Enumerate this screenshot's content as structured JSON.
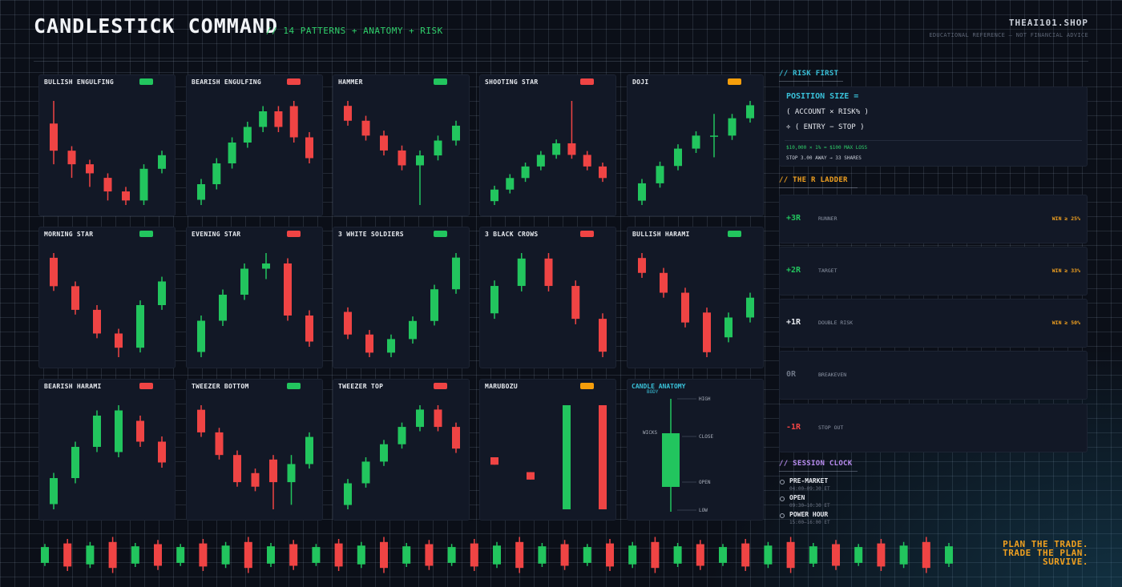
{
  "header": {
    "title": "CANDLESTICK COMMAND",
    "subtitle": "// 14 PATTERNS + ANATOMY + RISK",
    "brand": "THEAI101.SHOP",
    "disclaimer": "EDUCATIONAL REFERENCE — NOT FINANCIAL ADVICE"
  },
  "colors": {
    "bullish": "#22c55e",
    "bearish": "#ef4444",
    "neutral": "#f59e0b",
    "accent_cyan": "#39c0d8",
    "accent_orange": "#f0a020",
    "accent_purple": "#b88cf0"
  },
  "patterns": [
    {
      "name": "BULLISH ENGULFING",
      "bias": "bullish",
      "candles": [
        [
          70,
          64,
          75,
          61
        ],
        [
          64,
          61,
          65,
          58
        ],
        [
          61,
          59,
          62,
          56
        ],
        [
          58,
          55,
          59,
          53
        ],
        [
          55,
          53,
          56,
          52
        ],
        [
          53,
          60,
          61,
          52
        ],
        [
          60,
          63,
          64,
          59
        ]
      ]
    },
    {
      "name": "BEARISH ENGULFING",
      "bias": "bearish",
      "candles": [
        [
          55,
          58,
          59,
          54
        ],
        [
          58,
          62,
          63,
          57
        ],
        [
          62,
          66,
          67,
          61
        ],
        [
          66,
          69,
          70,
          65
        ],
        [
          69,
          72,
          73,
          68
        ],
        [
          72,
          69,
          73,
          68
        ],
        [
          73,
          67,
          74,
          66
        ],
        [
          67,
          63,
          68,
          62
        ]
      ]
    },
    {
      "name": "HAMMER",
      "bias": "bullish",
      "candles": [
        [
          78,
          75,
          79,
          74
        ],
        [
          75,
          72,
          76,
          71
        ],
        [
          72,
          69,
          73,
          68
        ],
        [
          69,
          66,
          70,
          65
        ],
        [
          66,
          68,
          69,
          58
        ],
        [
          68,
          71,
          72,
          67
        ],
        [
          71,
          74,
          75,
          70
        ]
      ]
    },
    {
      "name": "SHOOTING STAR",
      "bias": "bearish",
      "candles": [
        [
          60,
          63,
          64,
          59
        ],
        [
          63,
          66,
          67,
          62
        ],
        [
          66,
          69,
          70,
          65
        ],
        [
          69,
          72,
          73,
          68
        ],
        [
          72,
          75,
          76,
          71
        ],
        [
          75,
          72,
          86,
          71
        ],
        [
          72,
          69,
          73,
          68
        ],
        [
          69,
          66,
          70,
          65
        ]
      ]
    },
    {
      "name": "DOJI",
      "bias": "neutral",
      "candles": [
        [
          60,
          64,
          65,
          59
        ],
        [
          64,
          68,
          69,
          63
        ],
        [
          68,
          72,
          73,
          67
        ],
        [
          72,
          75,
          76,
          71
        ],
        [
          75,
          75,
          80,
          70
        ],
        [
          75,
          79,
          80,
          74
        ],
        [
          79,
          82,
          83,
          78
        ]
      ]
    },
    {
      "name": "MORNING STAR",
      "bias": "bullish",
      "candles": [
        [
          80,
          74,
          81,
          73
        ],
        [
          74,
          69,
          75,
          68
        ],
        [
          69,
          64,
          70,
          63
        ],
        [
          64,
          61,
          65,
          59
        ],
        [
          61,
          70,
          71,
          60
        ],
        [
          70,
          75,
          76,
          69
        ]
      ]
    },
    {
      "name": "EVENING STAR",
      "bias": "bearish",
      "candles": [
        [
          60,
          66,
          67,
          59
        ],
        [
          66,
          71,
          72,
          65
        ],
        [
          71,
          76,
          77,
          70
        ],
        [
          76,
          77,
          79,
          74
        ],
        [
          77,
          67,
          78,
          66
        ],
        [
          67,
          62,
          68,
          61
        ]
      ]
    },
    {
      "name": "3 WHITE SOLDIERS",
      "bias": "bullish",
      "candles": [
        [
          70,
          65,
          71,
          64
        ],
        [
          65,
          61,
          66,
          60
        ],
        [
          61,
          64,
          65,
          60
        ],
        [
          64,
          68,
          69,
          63
        ],
        [
          68,
          75,
          76,
          67
        ],
        [
          75,
          82,
          83,
          74
        ]
      ]
    },
    {
      "name": "3 BLACK CROWS",
      "bias": "bearish",
      "candles": [
        [
          70,
          75,
          76,
          69
        ],
        [
          75,
          80,
          81,
          74
        ],
        [
          80,
          75,
          81,
          74
        ],
        [
          75,
          69,
          76,
          68
        ],
        [
          69,
          63,
          70,
          62
        ]
      ]
    },
    {
      "name": "BULLISH HARAMI",
      "bias": "bullish",
      "candles": [
        [
          80,
          77,
          81,
          76
        ],
        [
          77,
          73,
          78,
          72
        ],
        [
          73,
          67,
          74,
          66
        ],
        [
          69,
          61,
          70,
          60
        ],
        [
          64,
          68,
          69,
          63
        ],
        [
          68,
          72,
          73,
          67
        ]
      ]
    },
    {
      "name": "BEARISH HARAMI",
      "bias": "bearish",
      "candles": [
        [
          60,
          65,
          66,
          59
        ],
        [
          65,
          71,
          72,
          64
        ],
        [
          71,
          77,
          78,
          70
        ],
        [
          70,
          78,
          79,
          69
        ],
        [
          76,
          72,
          77,
          71
        ],
        [
          72,
          68,
          73,
          67
        ]
      ]
    },
    {
      "name": "TWEEZER BOTTOM",
      "bias": "bullish",
      "candles": [
        [
          80,
          75,
          81,
          74
        ],
        [
          75,
          70,
          76,
          69
        ],
        [
          70,
          64,
          71,
          63
        ],
        [
          66,
          63,
          67,
          62
        ],
        [
          69,
          64,
          70,
          58
        ],
        [
          64,
          68,
          70,
          59
        ],
        [
          68,
          74,
          75,
          67
        ]
      ]
    },
    {
      "name": "TWEEZER TOP",
      "bias": "bearish",
      "candles": [
        [
          60,
          65,
          66,
          59
        ],
        [
          65,
          70,
          71,
          64
        ],
        [
          70,
          74,
          75,
          69
        ],
        [
          74,
          78,
          79,
          73
        ],
        [
          78,
          82,
          83,
          77
        ],
        [
          82,
          78,
          83,
          77
        ],
        [
          78,
          73,
          79,
          72
        ]
      ]
    },
    {
      "name": "MARUBOZU",
      "bias": "neutral",
      "candles": [
        [
          66,
          64,
          66,
          64
        ],
        [
          62,
          60,
          62,
          60
        ],
        [
          52,
          80,
          80,
          52
        ],
        [
          80,
          52,
          80,
          52
        ]
      ]
    }
  ],
  "anatomy": {
    "title": "CANDLE ANATOMY",
    "body": "BODY",
    "wicks": "WICKS",
    "high": "HIGH",
    "close": "CLOSE",
    "open": "OPEN",
    "low": "LOW"
  },
  "risk_first": {
    "title": "// RISK FIRST",
    "formula_title": "POSITION SIZE =",
    "line1": "( ACCOUNT × RISK% )",
    "line2": "÷ ( ENTRY − STOP )",
    "example1": "$10,000 × 1% = $100 MAX LOSS",
    "example2": "STOP 3.00 AWAY → 33 SHARES"
  },
  "r_ladder": {
    "title": "// THE R LADDER",
    "rungs": [
      {
        "value": "+3R",
        "label": "RUNNER",
        "win": "WIN ≥ 25%",
        "color": "#22c55e"
      },
      {
        "value": "+2R",
        "label": "TARGET",
        "win": "WIN ≥ 33%",
        "color": "#22c55e"
      },
      {
        "value": "+1R",
        "label": "DOUBLE RISK",
        "win": "WIN ≥ 50%",
        "color": "#e6e9ef"
      },
      {
        "value": "0R",
        "label": "BREAKEVEN",
        "win": "",
        "color": "#6d7585"
      },
      {
        "value": "-1R",
        "label": "STOP OUT",
        "win": "",
        "color": "#ef4444"
      }
    ]
  },
  "session_clock": {
    "title": "// SESSION CLOCK",
    "sessions": [
      {
        "name": "PRE-MARKET",
        "time": "04:00–09:30 ET"
      },
      {
        "name": "OPEN",
        "time": "09:30–10:30 ET"
      },
      {
        "name": "POWER HOUR",
        "time": "15:00–16:00 ET"
      }
    ]
  },
  "motto": [
    "PLAN THE TRADE.",
    "TRADE THE PLAN.",
    "SURVIVE."
  ]
}
